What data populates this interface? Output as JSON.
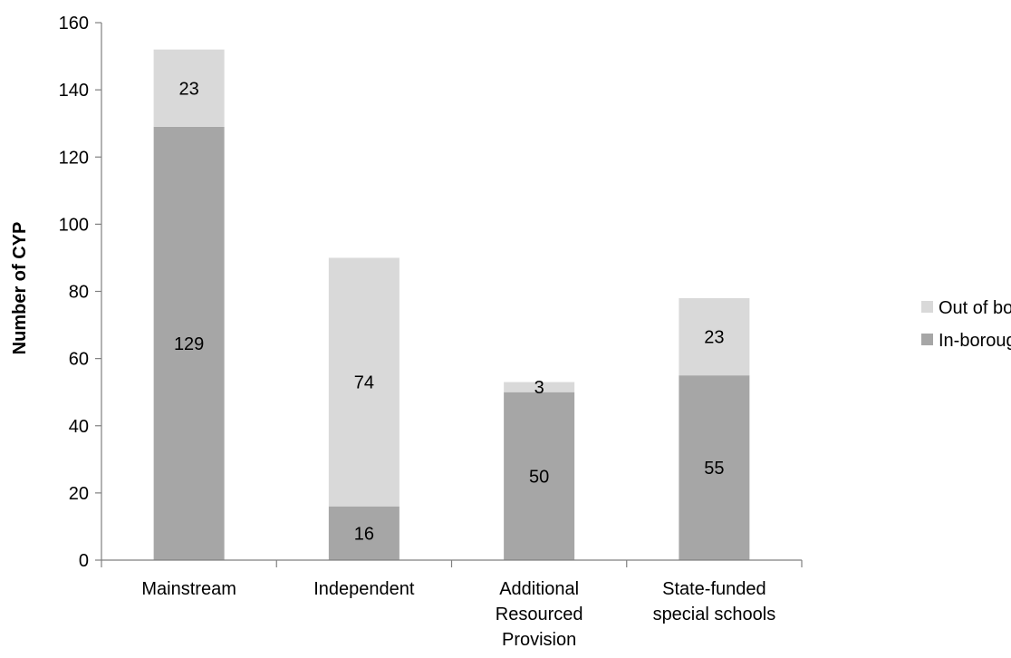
{
  "chart_data": {
    "type": "bar",
    "stacked": true,
    "title": "",
    "xlabel": "",
    "ylabel": "Number of CYP",
    "ylim": [
      0,
      160
    ],
    "yticks": [
      0,
      20,
      40,
      60,
      80,
      100,
      120,
      140,
      160
    ],
    "grid": false,
    "legend_position": "right",
    "categories": [
      [
        "Mainstream"
      ],
      [
        "Independent"
      ],
      [
        "Additional",
        "Resourced",
        "Provision"
      ],
      [
        "State-funded",
        "special schools"
      ]
    ],
    "series": [
      {
        "name": "In-borough",
        "color": "#a6a6a6",
        "values": [
          129,
          16,
          50,
          55
        ]
      },
      {
        "name": "Out of borough",
        "color": "#d9d9d9",
        "values": [
          23,
          74,
          3,
          23
        ]
      }
    ],
    "legend_order": [
      "Out of borough",
      "In-borough"
    ]
  }
}
